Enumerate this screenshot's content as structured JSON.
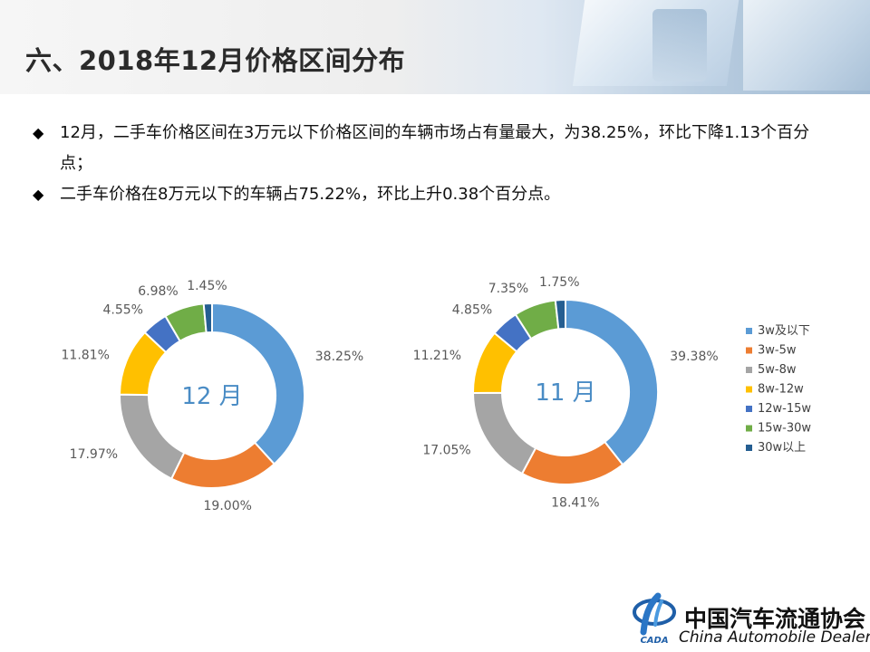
{
  "header": {
    "title": "六、2018年12月价格区间分布"
  },
  "bullets": [
    "12月，二手车价格区间在3万元以下价格区间的车辆市场占有量最大，为38.25%，环比下降1.13个百分点；",
    "二手车价格在8万元以下的车辆占75.22%，环比上升0.38个百分点。"
  ],
  "bullet_icon": "diamond-icon",
  "colors": {
    "3w及以下": "#5b9bd5",
    "3w-5w": "#ed7d31",
    "5w-8w": "#a5a5a5",
    "8w-12w": "#ffc000",
    "12w-15w": "#4472c4",
    "15w-30w": "#70ad47",
    "30w以上": "#255e91"
  },
  "chart_data": [
    {
      "type": "pie",
      "center_label": "12 月",
      "categories": [
        "3w及以下",
        "3w-5w",
        "5w-8w",
        "8w-12w",
        "12w-15w",
        "15w-30w",
        "30w以上"
      ],
      "values": [
        38.25,
        19.0,
        17.97,
        11.81,
        4.55,
        6.98,
        1.45
      ],
      "data_labels": [
        "38.25%",
        "19.00%",
        "17.97%",
        "11.81%",
        "4.55%",
        "6.98%",
        "1.45%"
      ]
    },
    {
      "type": "pie",
      "center_label": "11 月",
      "categories": [
        "3w及以下",
        "3w-5w",
        "5w-8w",
        "8w-12w",
        "12w-15w",
        "15w-30w",
        "30w以上"
      ],
      "values": [
        39.38,
        18.41,
        17.05,
        11.21,
        4.85,
        7.35,
        1.75
      ],
      "data_labels": [
        "39.38%",
        "18.41%",
        "17.05%",
        "11.21%",
        "4.85%",
        "7.35%",
        "1.75%"
      ]
    }
  ],
  "legend": [
    "3w及以下",
    "3w-5w",
    "5w-8w",
    "8w-12w",
    "12w-15w",
    "15w-30w",
    "30w以上"
  ],
  "footer": {
    "org_name_cn": "中国汽车流通协会",
    "org_name_en": "China Automobile Dealers",
    "logo_icon": "cada-logo-icon",
    "logo_text": "CADA"
  }
}
